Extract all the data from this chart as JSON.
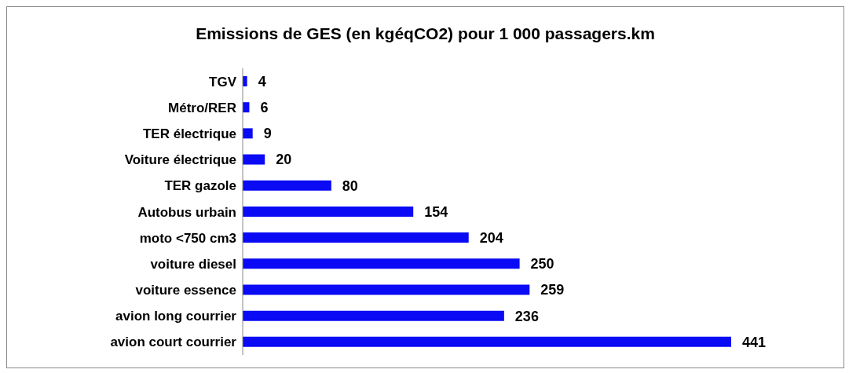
{
  "chart_data": {
    "type": "bar",
    "orientation": "horizontal",
    "title": "Emissions de GES (en kgéqCO2) pour 1 000 passagers.km",
    "categories": [
      "TGV",
      "Métro/RER",
      "TER électrique",
      "Voiture électrique",
      "TER gazole",
      "Autobus urbain",
      "moto <750 cm3",
      "voiture diesel",
      "voiture essence",
      "avion long courrier",
      "avion court courrier"
    ],
    "values": [
      4,
      6,
      9,
      20,
      80,
      154,
      204,
      250,
      259,
      236,
      441
    ],
    "color": "#0a0af5",
    "data_labels": true
  }
}
